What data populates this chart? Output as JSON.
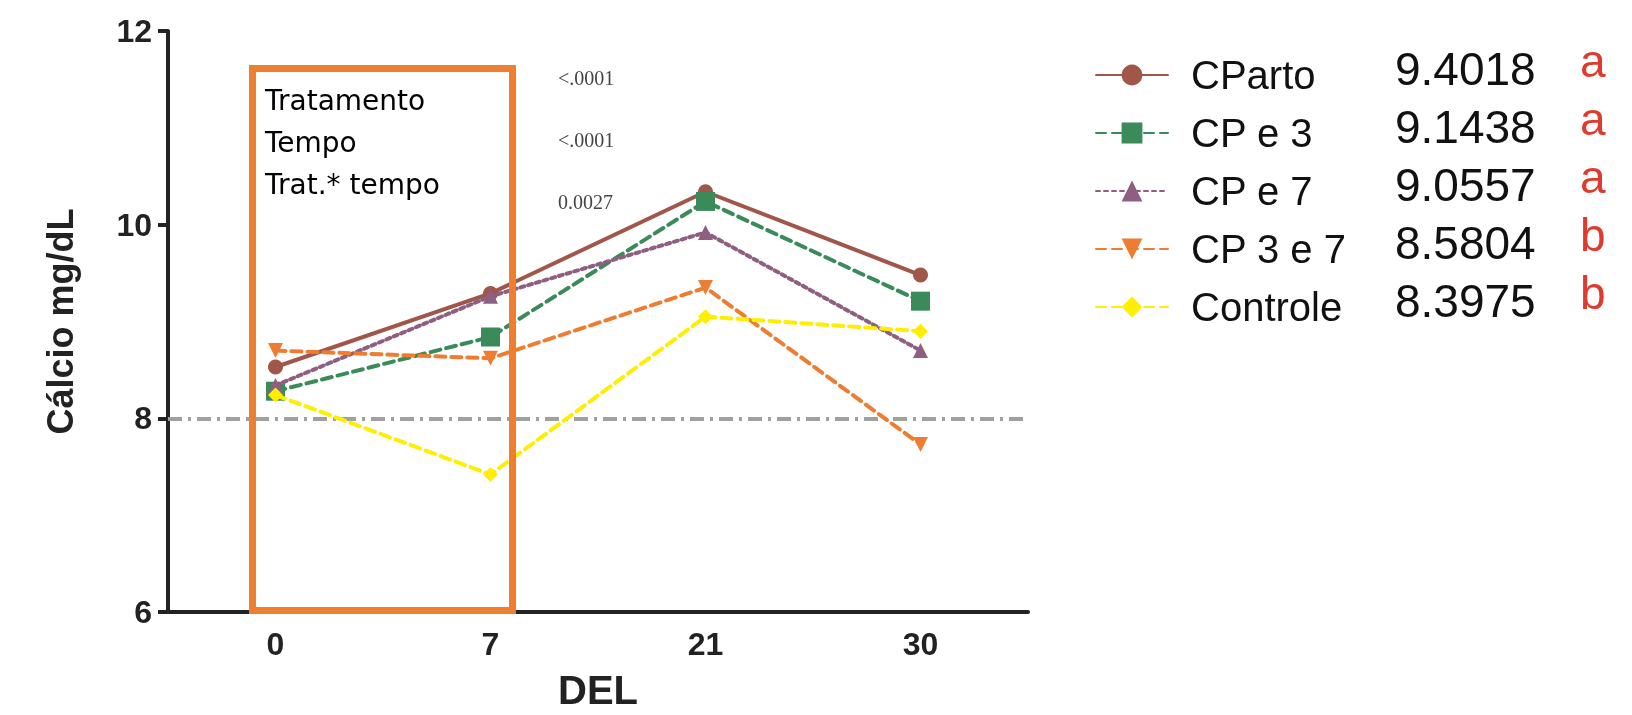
{
  "chart_data": {
    "type": "line",
    "xlabel": "DEL",
    "ylabel": "Cálcio mg/dL",
    "categories": [
      "0",
      "7",
      "21",
      "30"
    ],
    "ylim": [
      6,
      12
    ],
    "yticks": [
      6,
      8,
      10,
      12
    ],
    "grid": false,
    "legend": "right",
    "series": [
      {
        "name": "CParto",
        "color": "#a0574a",
        "marker": "circle",
        "line_style": "solid",
        "values": [
          8.53,
          9.29,
          10.34,
          9.48
        ]
      },
      {
        "name": "CP e 3",
        "color": "#3a8a5a",
        "marker": "square",
        "line_style": "dashed",
        "values": [
          8.28,
          8.84,
          10.24,
          9.21
        ]
      },
      {
        "name": "CP e 7",
        "color": "#8e5f80",
        "marker": "triangle",
        "line_style": "dotted",
        "values": [
          8.34,
          9.26,
          9.92,
          8.7
        ]
      },
      {
        "name": "CP 3 e 7",
        "color": "#ef7d31",
        "marker": "triangle-down",
        "line_style": "dashed",
        "values": [
          8.7,
          8.62,
          9.35,
          7.73
        ]
      },
      {
        "name": "Controle",
        "color": "#ffee00",
        "marker": "diamond",
        "line_style": "dashed",
        "values": [
          8.24,
          7.42,
          9.05,
          8.9
        ]
      }
    ],
    "ref_lines": [
      {
        "axis": "y",
        "value": 8,
        "color": "#a0a0a0",
        "line_style": "dashed"
      }
    ],
    "annotations": [
      "Tratamento",
      "Tempo",
      "Trat.* tempo",
      "<.0001",
      "<.0001",
      "0.0027",
      "9.4018",
      "a",
      "9.1438",
      "a",
      "9.0557",
      "a",
      "8.5804",
      "b",
      "8.3975",
      "b"
    ]
  }
}
